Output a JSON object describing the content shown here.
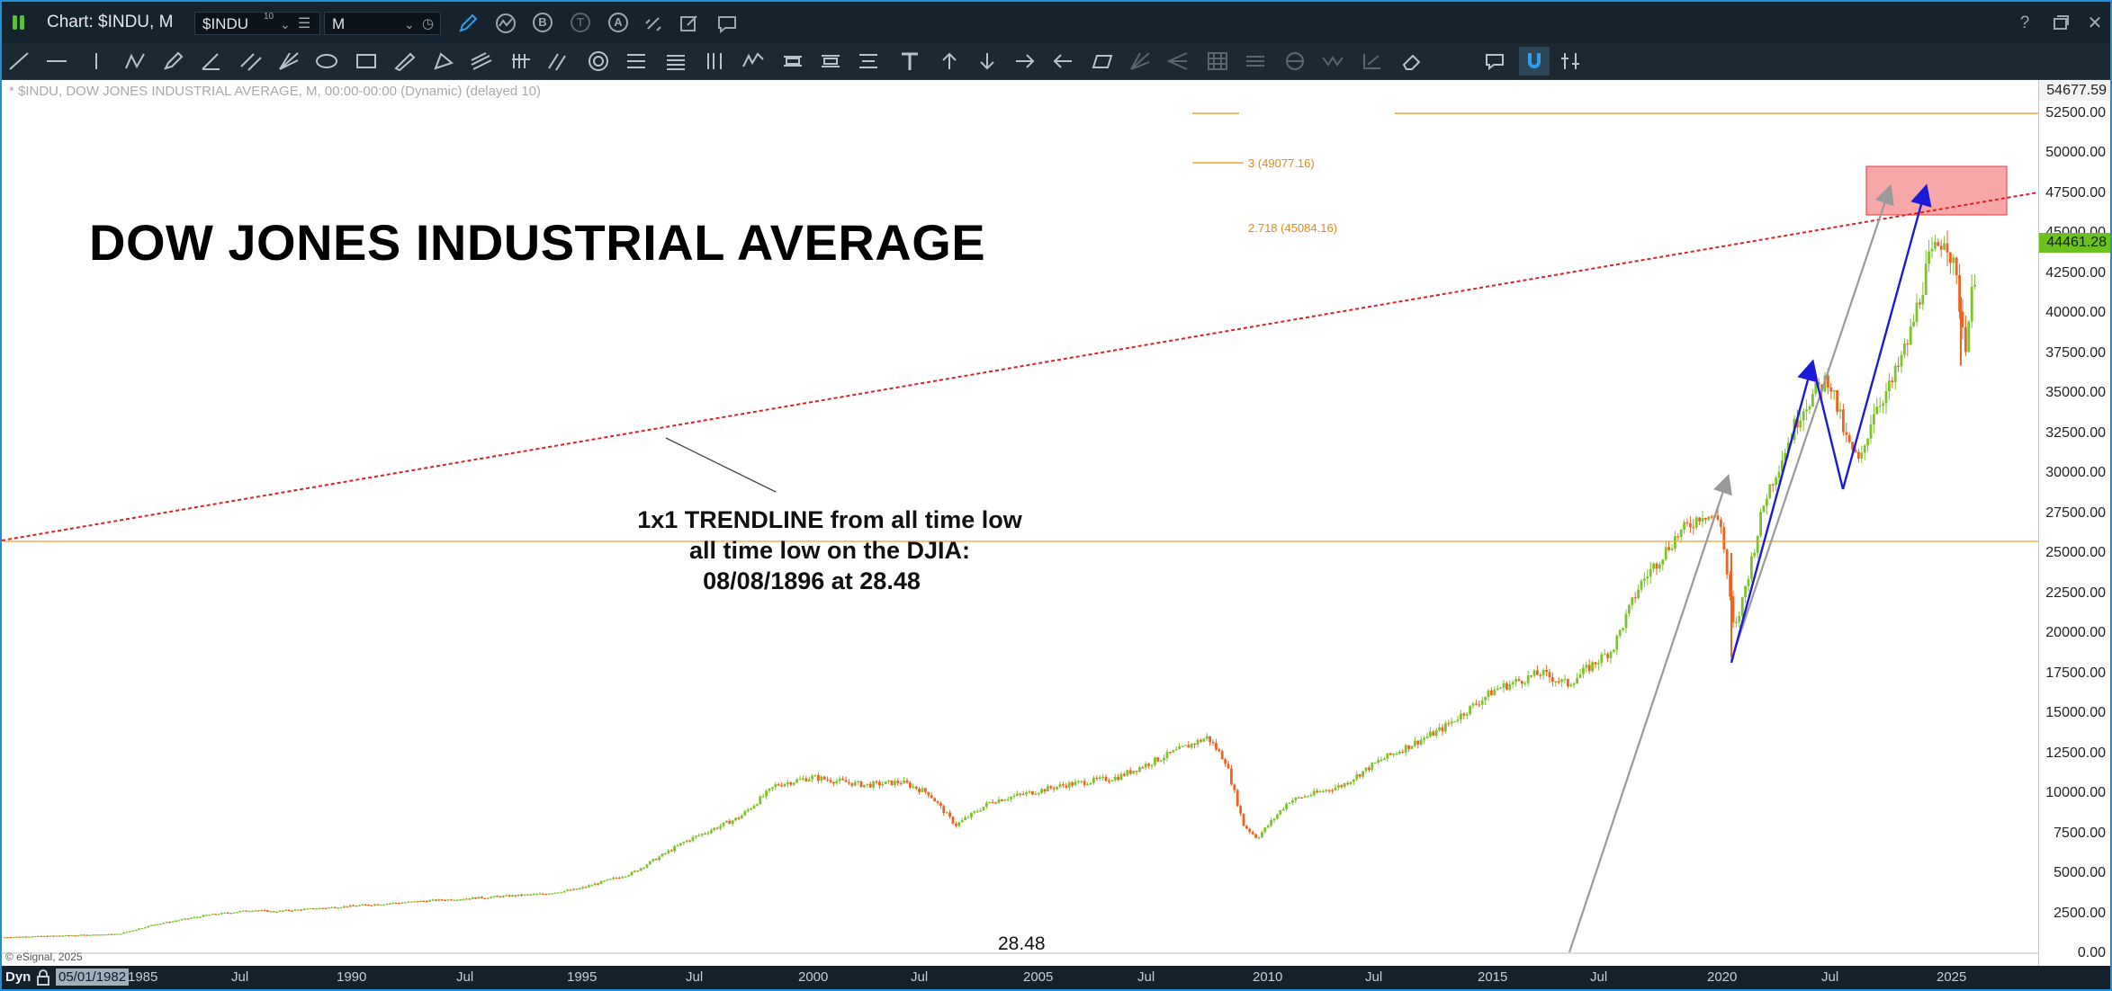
{
  "window": {
    "title": "Chart: $INDU, M",
    "symbol": "$INDU",
    "symbol_superscript": "10",
    "interval": "M",
    "help_glyph": "?",
    "close_glyph": "✕"
  },
  "toolbar": {
    "circle_b": "B",
    "circle_t": "T",
    "circle_a": "A"
  },
  "chart": {
    "info": "* $INDU, DOW JONES INDUSTRIAL AVERAGE, M, 00:00-00:00 (Dynamic) (delayed 10)",
    "heading": "DOW JONES INDUSTRIAL AVERAGE",
    "annotation_line1": "1x1 TRENDLINE from all time low",
    "annotation_line2": "all time low on the DJIA:",
    "annotation_line3": "08/08/1896 at 28.48",
    "low_label": "28.48",
    "copyright": "© eSignal, 2025",
    "fib_3": "3 (49077.16)",
    "fib_2718": "2.718 (45084.16)",
    "top_price": "54677.59",
    "last_price": "44461.28",
    "colors": {
      "up": "#7cc42a",
      "down": "#f0621f",
      "trend": "#e02020",
      "fib": "#f2a23a",
      "target": "#f48a8a",
      "blue_arrow": "#1a1ad8",
      "gray_arrow": "#9a9a9a"
    }
  },
  "price_axis": {
    "ticks": [
      "52500.00",
      "50000.00",
      "47500.00",
      "45000.00",
      "42500.00",
      "40000.00",
      "37500.00",
      "35000.00",
      "32500.00",
      "30000.00",
      "27500.00",
      "25000.00",
      "22500.00",
      "20000.00",
      "17500.00",
      "15000.00",
      "12500.00",
      "10000.00",
      "7500.00",
      "5000.00",
      "2500.00",
      "0.00"
    ]
  },
  "time_axis": {
    "mode": "Dyn",
    "cursor_date": "05/01/1982",
    "ticks": [
      "1985",
      "Jul",
      "1990",
      "Jul",
      "1995",
      "Jul",
      "2000",
      "Jul",
      "2005",
      "Jul",
      "2010",
      "Jul",
      "2015",
      "Jul",
      "2020",
      "Jul",
      "2025"
    ]
  }
}
